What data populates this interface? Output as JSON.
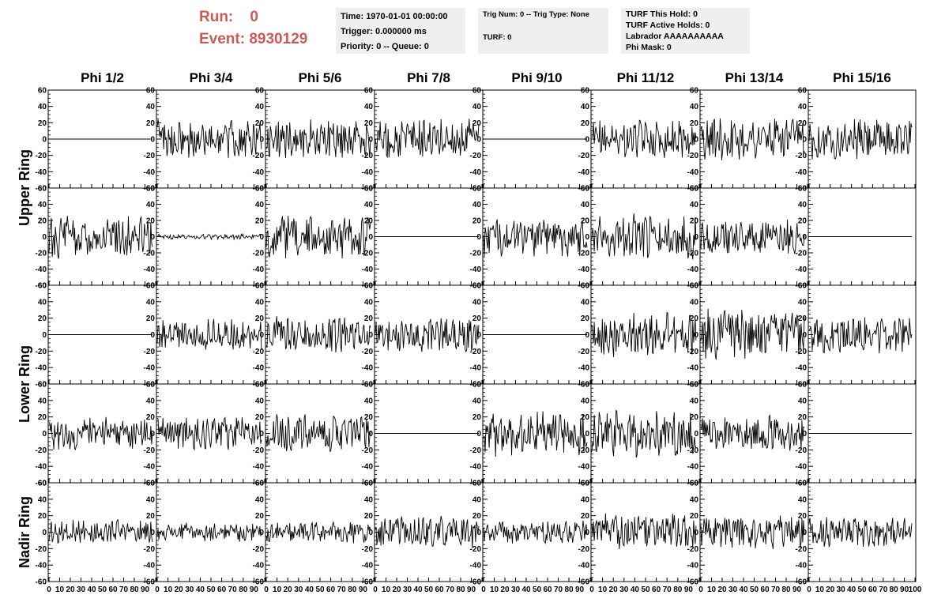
{
  "header": {
    "run_label": "Run:",
    "run_value": "0",
    "event_label": "Event:",
    "event_value": "8930129"
  },
  "info_box_1": {
    "time": "Time: 1970-01-01 00:00:00",
    "trigger": "Trigger: 0.000000 ms",
    "priority": "Priority: 0 -- Queue: 0"
  },
  "info_box_2": {
    "trig": "Trig Num: 0 -- Trig Type: None",
    "turf": "TURF: 0"
  },
  "info_box_3": {
    "hold": "TURF This Hold: 0",
    "active": "TURF Active Holds: 0",
    "labrador": "Labrador AAAAAAAAAA",
    "phimask": "Phi Mask: 0"
  },
  "colors": {
    "run_text": "#cc5a55",
    "info_bg": "#efefef",
    "trace": "#000000"
  },
  "chart_data": {
    "type": "line",
    "columns": [
      "Phi 1/2",
      "Phi 3/4",
      "Phi 5/6",
      "Phi 7/8",
      "Phi 9/10",
      "Phi 11/12",
      "Phi 13/14",
      "Phi 15/16"
    ],
    "rows": [
      "Upper Ring",
      "Lower Ring",
      "Nadir Ring"
    ],
    "grid_rows": 5,
    "row_labels": [
      {
        "text": "Upper Ring",
        "rows": [
          0,
          1
        ]
      },
      {
        "text": "Lower Ring",
        "rows": [
          2,
          3
        ]
      },
      {
        "text": "Nadir Ring",
        "rows": [
          4
        ]
      }
    ],
    "xlim": [
      0,
      100
    ],
    "ylim": [
      -60,
      60
    ],
    "x_tick_labels": [
      "0",
      "10",
      "20",
      "30",
      "40",
      "50",
      "60",
      "70",
      "80",
      "90",
      "100"
    ],
    "y_tick_labels": [
      "60",
      "40",
      "20",
      "0",
      "-20",
      "-40",
      "-60"
    ],
    "amplitude": [
      [
        0,
        15,
        15,
        15,
        0,
        14,
        16,
        15
      ],
      [
        17,
        2,
        16,
        0,
        15,
        17,
        14,
        0
      ],
      [
        0,
        12,
        14,
        13,
        0,
        17,
        19,
        14
      ],
      [
        12,
        12,
        14,
        0,
        17,
        18,
        13,
        0
      ],
      [
        9,
        7,
        8,
        12,
        9,
        14,
        13,
        11
      ]
    ],
    "samples_per_trace": 130
  }
}
